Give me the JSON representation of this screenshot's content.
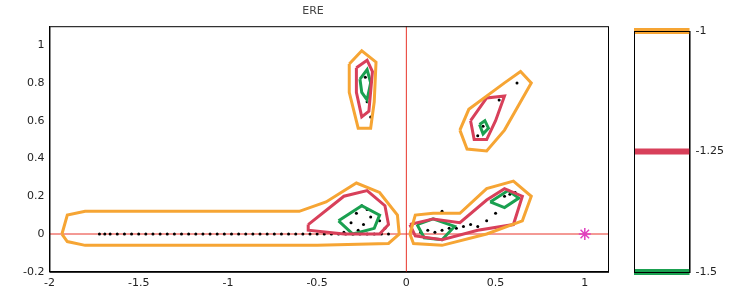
{
  "chart_data": {
    "type": "contour",
    "title": "ERE",
    "xlim": [
      -2,
      1.13
    ],
    "ylim": [
      -0.2,
      1.1
    ],
    "xticks": [
      -2,
      -1.5,
      -1,
      -0.5,
      0,
      0.5,
      1
    ],
    "yticks": [
      -0.2,
      0,
      0.2,
      0.4,
      0.6,
      0.8,
      1
    ],
    "grid": false,
    "contours": [
      {
        "level": -1,
        "color": "#f6a534",
        "paths": [
          [
            [
              -1.93,
              0.0
            ],
            [
              -1.9,
              0.1
            ],
            [
              -1.8,
              0.12
            ],
            [
              -0.6,
              0.12
            ],
            [
              -0.45,
              0.17
            ],
            [
              -0.28,
              0.27
            ],
            [
              -0.15,
              0.22
            ],
            [
              -0.05,
              0.1
            ],
            [
              -0.04,
              0.0
            ],
            [
              -0.1,
              -0.05
            ],
            [
              -0.5,
              -0.06
            ],
            [
              -1.8,
              -0.06
            ],
            [
              -1.9,
              -0.04
            ]
          ],
          [
            [
              0.02,
              0.0
            ],
            [
              0.05,
              0.1
            ],
            [
              0.15,
              0.11
            ],
            [
              0.3,
              0.11
            ],
            [
              0.45,
              0.24
            ],
            [
              0.6,
              0.28
            ],
            [
              0.7,
              0.2
            ],
            [
              0.65,
              0.07
            ],
            [
              0.45,
              0.0
            ],
            [
              0.2,
              -0.06
            ],
            [
              0.04,
              -0.05
            ]
          ],
          [
            [
              -0.32,
              0.9
            ],
            [
              -0.25,
              0.97
            ],
            [
              -0.17,
              0.91
            ],
            [
              -0.18,
              0.7
            ],
            [
              -0.2,
              0.56
            ],
            [
              -0.27,
              0.56
            ],
            [
              -0.32,
              0.75
            ]
          ],
          [
            [
              0.3,
              0.55
            ],
            [
              0.35,
              0.66
            ],
            [
              0.55,
              0.8
            ],
            [
              0.64,
              0.86
            ],
            [
              0.7,
              0.8
            ],
            [
              0.55,
              0.55
            ],
            [
              0.45,
              0.44
            ],
            [
              0.34,
              0.45
            ]
          ]
        ]
      },
      {
        "level": -1.25,
        "color": "#d8405a",
        "paths": [
          [
            [
              -0.28,
              0.88
            ],
            [
              -0.22,
              0.92
            ],
            [
              -0.19,
              0.86
            ],
            [
              -0.21,
              0.65
            ],
            [
              -0.25,
              0.62
            ],
            [
              -0.28,
              0.75
            ]
          ],
          [
            [
              0.36,
              0.6
            ],
            [
              0.45,
              0.72
            ],
            [
              0.55,
              0.73
            ],
            [
              0.5,
              0.6
            ],
            [
              0.45,
              0.5
            ],
            [
              0.38,
              0.5
            ]
          ],
          [
            [
              -0.55,
              0.05
            ],
            [
              -0.35,
              0.2
            ],
            [
              -0.22,
              0.23
            ],
            [
              -0.12,
              0.15
            ],
            [
              -0.1,
              0.05
            ],
            [
              -0.15,
              0.0
            ],
            [
              -0.35,
              0.0
            ],
            [
              -0.55,
              0.02
            ]
          ],
          [
            [
              0.02,
              0.05
            ],
            [
              0.15,
              0.08
            ],
            [
              0.3,
              0.06
            ],
            [
              0.45,
              0.18
            ],
            [
              0.55,
              0.24
            ],
            [
              0.65,
              0.2
            ],
            [
              0.6,
              0.05
            ],
            [
              0.4,
              0.02
            ],
            [
              0.2,
              -0.03
            ],
            [
              0.05,
              -0.01
            ]
          ]
        ]
      },
      {
        "level": -1.5,
        "color": "#1aa050",
        "paths": [
          [
            [
              -0.26,
              0.82
            ],
            [
              -0.22,
              0.87
            ],
            [
              -0.2,
              0.8
            ],
            [
              -0.22,
              0.71
            ],
            [
              -0.25,
              0.75
            ]
          ],
          [
            [
              0.41,
              0.58
            ],
            [
              0.44,
              0.6
            ],
            [
              0.46,
              0.56
            ],
            [
              0.43,
              0.53
            ]
          ],
          [
            [
              -0.38,
              0.07
            ],
            [
              -0.25,
              0.15
            ],
            [
              -0.15,
              0.1
            ],
            [
              -0.18,
              0.03
            ],
            [
              -0.3,
              0.0
            ]
          ],
          [
            [
              0.06,
              0.05
            ],
            [
              0.15,
              0.08
            ],
            [
              0.27,
              0.04
            ],
            [
              0.2,
              -0.03
            ],
            [
              0.1,
              -0.02
            ]
          ],
          [
            [
              0.47,
              0.17
            ],
            [
              0.57,
              0.23
            ],
            [
              0.63,
              0.19
            ],
            [
              0.55,
              0.14
            ]
          ]
        ]
      }
    ],
    "points": {
      "color": "#000000",
      "xy": [
        [
          -1.72,
          0
        ],
        [
          -1.69,
          0
        ],
        [
          -1.66,
          0
        ],
        [
          -1.62,
          0
        ],
        [
          -1.58,
          0
        ],
        [
          -1.54,
          0
        ],
        [
          -1.5,
          0
        ],
        [
          -1.46,
          0
        ],
        [
          -1.42,
          0
        ],
        [
          -1.38,
          0
        ],
        [
          -1.34,
          0
        ],
        [
          -1.3,
          0
        ],
        [
          -1.26,
          0
        ],
        [
          -1.22,
          0
        ],
        [
          -1.18,
          0
        ],
        [
          -1.14,
          0
        ],
        [
          -1.1,
          0
        ],
        [
          -1.06,
          0
        ],
        [
          -1.02,
          0
        ],
        [
          -0.98,
          0
        ],
        [
          -0.94,
          0
        ],
        [
          -0.9,
          0
        ],
        [
          -0.86,
          0
        ],
        [
          -0.82,
          0
        ],
        [
          -0.78,
          0
        ],
        [
          -0.74,
          0
        ],
        [
          -0.7,
          0
        ],
        [
          -0.66,
          0
        ],
        [
          -0.62,
          0
        ],
        [
          -0.58,
          0
        ],
        [
          -0.54,
          0
        ],
        [
          -0.5,
          0
        ],
        [
          -0.46,
          0
        ],
        [
          -0.42,
          0
        ],
        [
          -0.38,
          0
        ],
        [
          -0.34,
          0
        ],
        [
          -0.3,
          0
        ],
        [
          -0.26,
          0
        ],
        [
          -0.22,
          0
        ],
        [
          -0.18,
          0
        ],
        [
          -0.14,
          0
        ],
        [
          -0.1,
          0
        ],
        [
          -0.25,
          0.15
        ],
        [
          -0.22,
          0.13
        ],
        [
          -0.28,
          0.11
        ],
        [
          -0.2,
          0.09
        ],
        [
          -0.31,
          0.06
        ],
        [
          -0.24,
          0.05
        ],
        [
          -0.15,
          0.07
        ],
        [
          -0.27,
          0.02
        ],
        [
          -0.12,
          0.03
        ],
        [
          -0.35,
          0.01
        ],
        [
          -0.23,
          0.83
        ],
        [
          -0.22,
          0.7
        ],
        [
          -0.2,
          0.62
        ],
        [
          0.62,
          0.8
        ],
        [
          0.52,
          0.71
        ],
        [
          0.43,
          0.57
        ],
        [
          0.4,
          0.52
        ],
        [
          0.08,
          0.01
        ],
        [
          0.12,
          0.02
        ],
        [
          0.16,
          0.01
        ],
        [
          0.2,
          0.02
        ],
        [
          0.24,
          0.03
        ],
        [
          0.28,
          0.03
        ],
        [
          0.32,
          0.04
        ],
        [
          0.36,
          0.05
        ],
        [
          0.4,
          0.04
        ],
        [
          0.45,
          0.07
        ],
        [
          0.2,
          0.12
        ],
        [
          0.5,
          0.11
        ],
        [
          0.55,
          0.2
        ],
        [
          0.58,
          0.21
        ],
        [
          0.61,
          0.22
        ]
      ]
    },
    "marker_point": {
      "x": 1,
      "y": 0,
      "color": "#e040c0",
      "marker": "star"
    },
    "reference_lines": {
      "x": 0,
      "y": 0,
      "color": "#e8352a"
    },
    "colorbar": {
      "range": [
        -1.5,
        -1
      ],
      "ticks": [
        -1,
        -1.25,
        -1.5
      ]
    }
  }
}
